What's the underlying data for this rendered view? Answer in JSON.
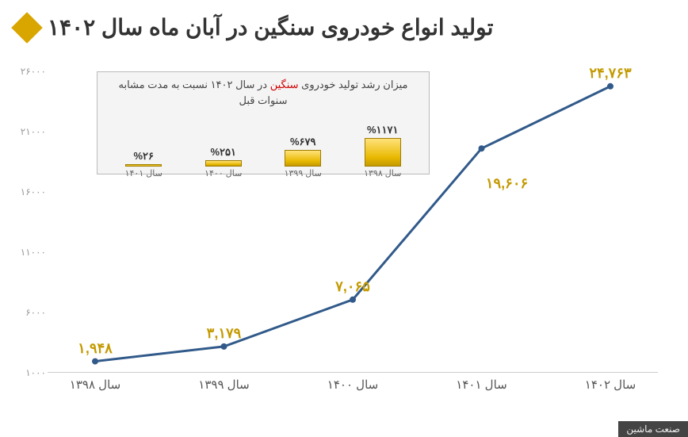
{
  "title": "تولید انواع خودروی سنگین در آبان ماه سال ۱۴۰۲",
  "main_chart": {
    "type": "line",
    "x_labels": [
      "سال ۱۳۹۸",
      "سال ۱۳۹۹",
      "سال ۱۴۰۰",
      "سال ۱۴۰۱",
      "سال ۱۴۰۲"
    ],
    "values": [
      1948,
      3179,
      7065,
      19606,
      24763
    ],
    "value_labels": [
      "۱,۹۴۸",
      "۳,۱۷۹",
      "۷,۰۶۵",
      "۱۹,۶۰۶",
      "۲۴,۷۶۳"
    ],
    "y_ticks": [
      1000,
      6000,
      11000,
      16000,
      21000,
      26000
    ],
    "y_tick_labels": [
      "۱۰۰۰",
      "۶۰۰۰",
      "۱۱۰۰۰",
      "۱۶۰۰۰",
      "۲۱۰۰۰",
      "۲۶۰۰۰"
    ],
    "ylim": [
      1000,
      26000
    ],
    "line_color": "#315a8a",
    "line_width": 3,
    "marker_color": "#315a8a",
    "marker_radius": 4,
    "label_color": "#c49a00",
    "label_fontsize": 18
  },
  "inset": {
    "type": "bar",
    "title_pre": "میزان رشد تولید خودروی ",
    "title_red": "سنگین",
    "title_post": " در سال ۱۴۰۲ نسبت به مدت مشابه سنوات قبل",
    "categories": [
      "سال ۱۳۹۸",
      "سال ۱۳۹۹",
      "سال ۱۴۰۰",
      "سال ۱۴۰۱"
    ],
    "values": [
      1171,
      679,
      251,
      26
    ],
    "value_labels": [
      "%۱۱۷۱",
      "%۶۷۹",
      "%۲۵۱",
      "%۲۶"
    ],
    "bar_color_top": "#ffe27a",
    "bar_color_bottom": "#c49a00",
    "max_value": 1171,
    "max_bar_height": 36
  },
  "watermark": "صنعت ماشین"
}
